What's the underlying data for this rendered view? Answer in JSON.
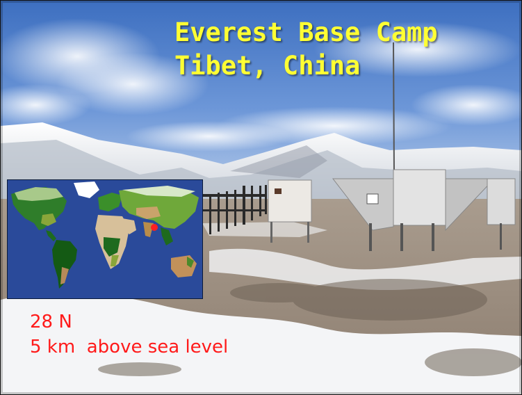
{
  "title": {
    "line1": "Everest Base Camp",
    "line2": "Tibet, China"
  },
  "caption": {
    "latitude": "28 N",
    "altitude": "5 km  above sea level"
  },
  "colors": {
    "title": "#ffff33",
    "caption": "#ff1a1a",
    "map_ocean": "#2a4a9a",
    "marker": "#ff2020"
  }
}
